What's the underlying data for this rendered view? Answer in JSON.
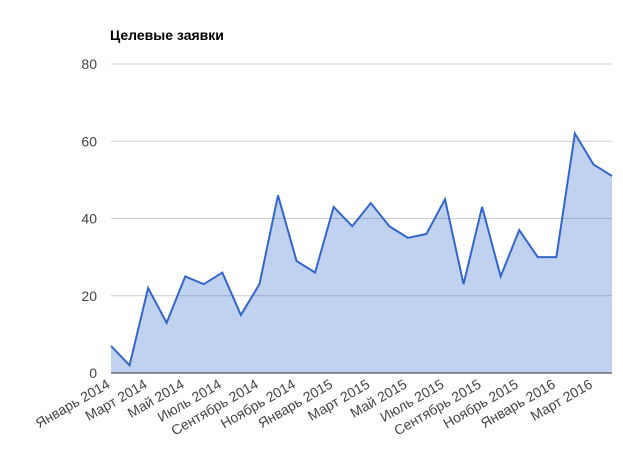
{
  "chart_data": {
    "type": "area",
    "title": "Целевые заявки",
    "categories": [
      "Январь 2014",
      null,
      "Март 2014",
      null,
      "Май 2014",
      null,
      "Июль 2014",
      null,
      "Сентябрь 2014",
      null,
      "Ноябрь 2014",
      null,
      "Январь 2015",
      null,
      "Март 2015",
      null,
      "Май 2015",
      null,
      "Июль 2015",
      null,
      "Сентябрь 2015",
      null,
      "Ноябрь 2015",
      null,
      "Январь 2016",
      null,
      "Март 2016",
      null
    ],
    "values": [
      7,
      2,
      22,
      13,
      25,
      23,
      26,
      15,
      23,
      46,
      29,
      26,
      43,
      38,
      44,
      38,
      35,
      36,
      45,
      23,
      43,
      25,
      37,
      30,
      30,
      62,
      54,
      51
    ],
    "color": "#3366cc",
    "ylim": [
      0,
      80
    ],
    "yticks": [
      0,
      20,
      40,
      60,
      80
    ],
    "grid": true
  }
}
